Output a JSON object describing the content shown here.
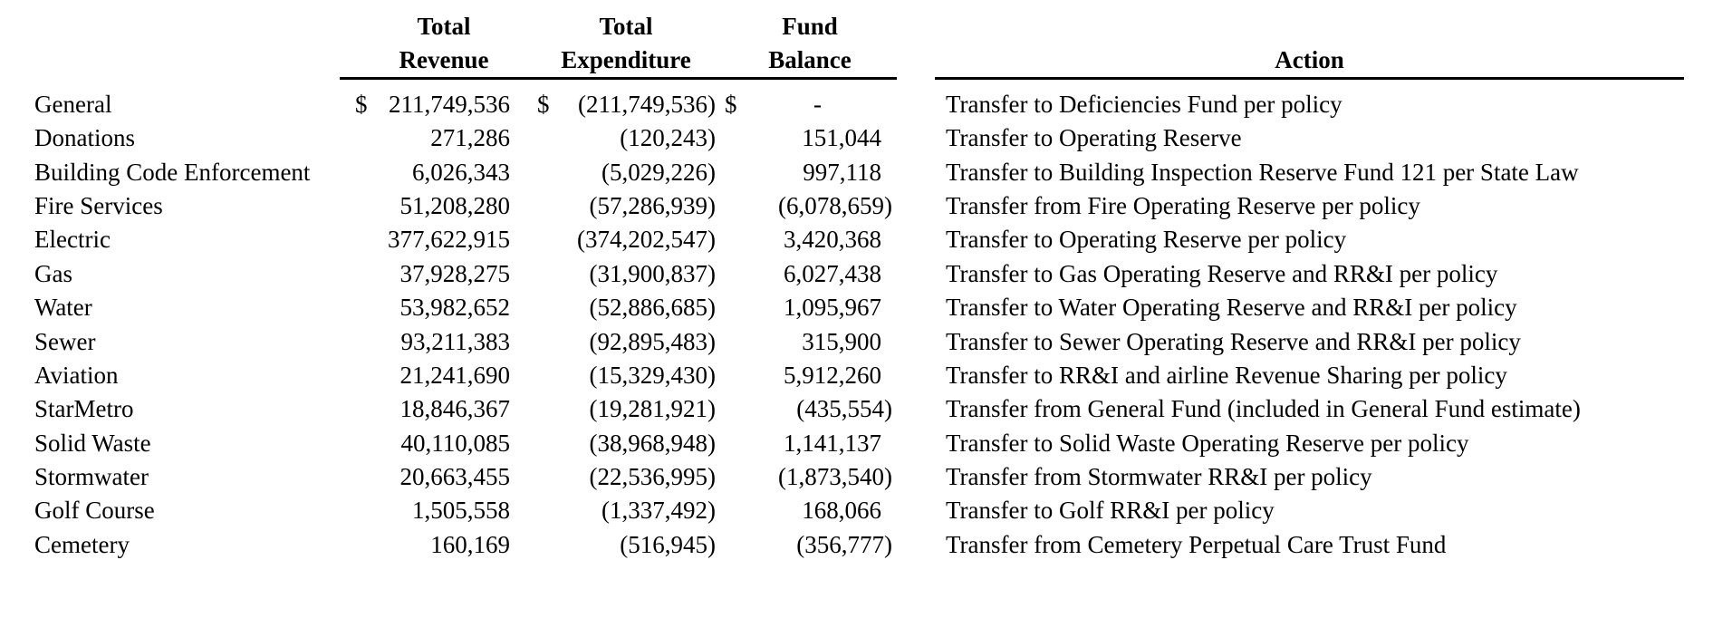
{
  "table": {
    "columns": {
      "revenue": {
        "line1": "Total",
        "line2": "Revenue"
      },
      "expenditure": {
        "line1": "Total",
        "line2": "Expenditure"
      },
      "balance": {
        "line1": "Fund",
        "line2": "Balance"
      },
      "action": {
        "label": "Action"
      }
    },
    "rows": [
      {
        "fund": "General",
        "revenue_currency": "$",
        "revenue": "211,749,536",
        "expenditure_currency": "$",
        "expenditure": "(211,749,536)",
        "balance_currency": "$",
        "balance": "-",
        "action": "Transfer to Deficiencies Fund per policy"
      },
      {
        "fund": "Donations",
        "revenue_currency": "",
        "revenue": "271,286",
        "expenditure_currency": "",
        "expenditure": "(120,243)",
        "balance_currency": "",
        "balance": "151,044",
        "action": "Transfer to Operating Reserve"
      },
      {
        "fund": "Building Code Enforcement",
        "revenue_currency": "",
        "revenue": "6,026,343",
        "expenditure_currency": "",
        "expenditure": "(5,029,226)",
        "balance_currency": "",
        "balance": "997,118",
        "action": "Transfer to Building Inspection Reserve Fund 121 per State Law"
      },
      {
        "fund": "Fire Services",
        "revenue_currency": "",
        "revenue": "51,208,280",
        "expenditure_currency": "",
        "expenditure": "(57,286,939)",
        "balance_currency": "",
        "balance": "(6,078,659)",
        "action": "Transfer from Fire Operating Reserve per policy"
      },
      {
        "fund": "Electric",
        "revenue_currency": "",
        "revenue": "377,622,915",
        "expenditure_currency": "",
        "expenditure": "(374,202,547)",
        "balance_currency": "",
        "balance": "3,420,368",
        "action": "Transfer to Operating Reserve per policy"
      },
      {
        "fund": "Gas",
        "revenue_currency": "",
        "revenue": "37,928,275",
        "expenditure_currency": "",
        "expenditure": "(31,900,837)",
        "balance_currency": "",
        "balance": "6,027,438",
        "action": "Transfer to Gas Operating Reserve and RR&I per policy"
      },
      {
        "fund": "Water",
        "revenue_currency": "",
        "revenue": "53,982,652",
        "expenditure_currency": "",
        "expenditure": "(52,886,685)",
        "balance_currency": "",
        "balance": "1,095,967",
        "action": "Transfer to Water Operating Reserve and RR&I per policy"
      },
      {
        "fund": "Sewer",
        "revenue_currency": "",
        "revenue": "93,211,383",
        "expenditure_currency": "",
        "expenditure": "(92,895,483)",
        "balance_currency": "",
        "balance": "315,900",
        "action": "Transfer to Sewer Operating Reserve and RR&I per policy"
      },
      {
        "fund": "Aviation",
        "revenue_currency": "",
        "revenue": "21,241,690",
        "expenditure_currency": "",
        "expenditure": "(15,329,430)",
        "balance_currency": "",
        "balance": "5,912,260",
        "action": "Transfer to RR&I and airline Revenue Sharing per policy"
      },
      {
        "fund": "StarMetro",
        "revenue_currency": "",
        "revenue": "18,846,367",
        "expenditure_currency": "",
        "expenditure": "(19,281,921)",
        "balance_currency": "",
        "balance": "(435,554)",
        "action": "Transfer from General Fund (included in General Fund estimate)"
      },
      {
        "fund": "Solid Waste",
        "revenue_currency": "",
        "revenue": "40,110,085",
        "expenditure_currency": "",
        "expenditure": "(38,968,948)",
        "balance_currency": "",
        "balance": "1,141,137",
        "action": "Transfer to Solid Waste Operating Reserve per policy"
      },
      {
        "fund": "Stormwater",
        "revenue_currency": "",
        "revenue": "20,663,455",
        "expenditure_currency": "",
        "expenditure": "(22,536,995)",
        "balance_currency": "",
        "balance": "(1,873,540)",
        "action": "Transfer from Stormwater RR&I per policy"
      },
      {
        "fund": "Golf Course",
        "revenue_currency": "",
        "revenue": "1,505,558",
        "expenditure_currency": "",
        "expenditure": "(1,337,492)",
        "balance_currency": "",
        "balance": "168,066",
        "action": "Transfer to Golf RR&I per policy"
      },
      {
        "fund": "Cemetery",
        "revenue_currency": "",
        "revenue": "160,169",
        "expenditure_currency": "",
        "expenditure": "(516,945)",
        "balance_currency": "",
        "balance": "(356,777)",
        "action": "Transfer from Cemetery Perpetual Care Trust Fund"
      }
    ]
  }
}
